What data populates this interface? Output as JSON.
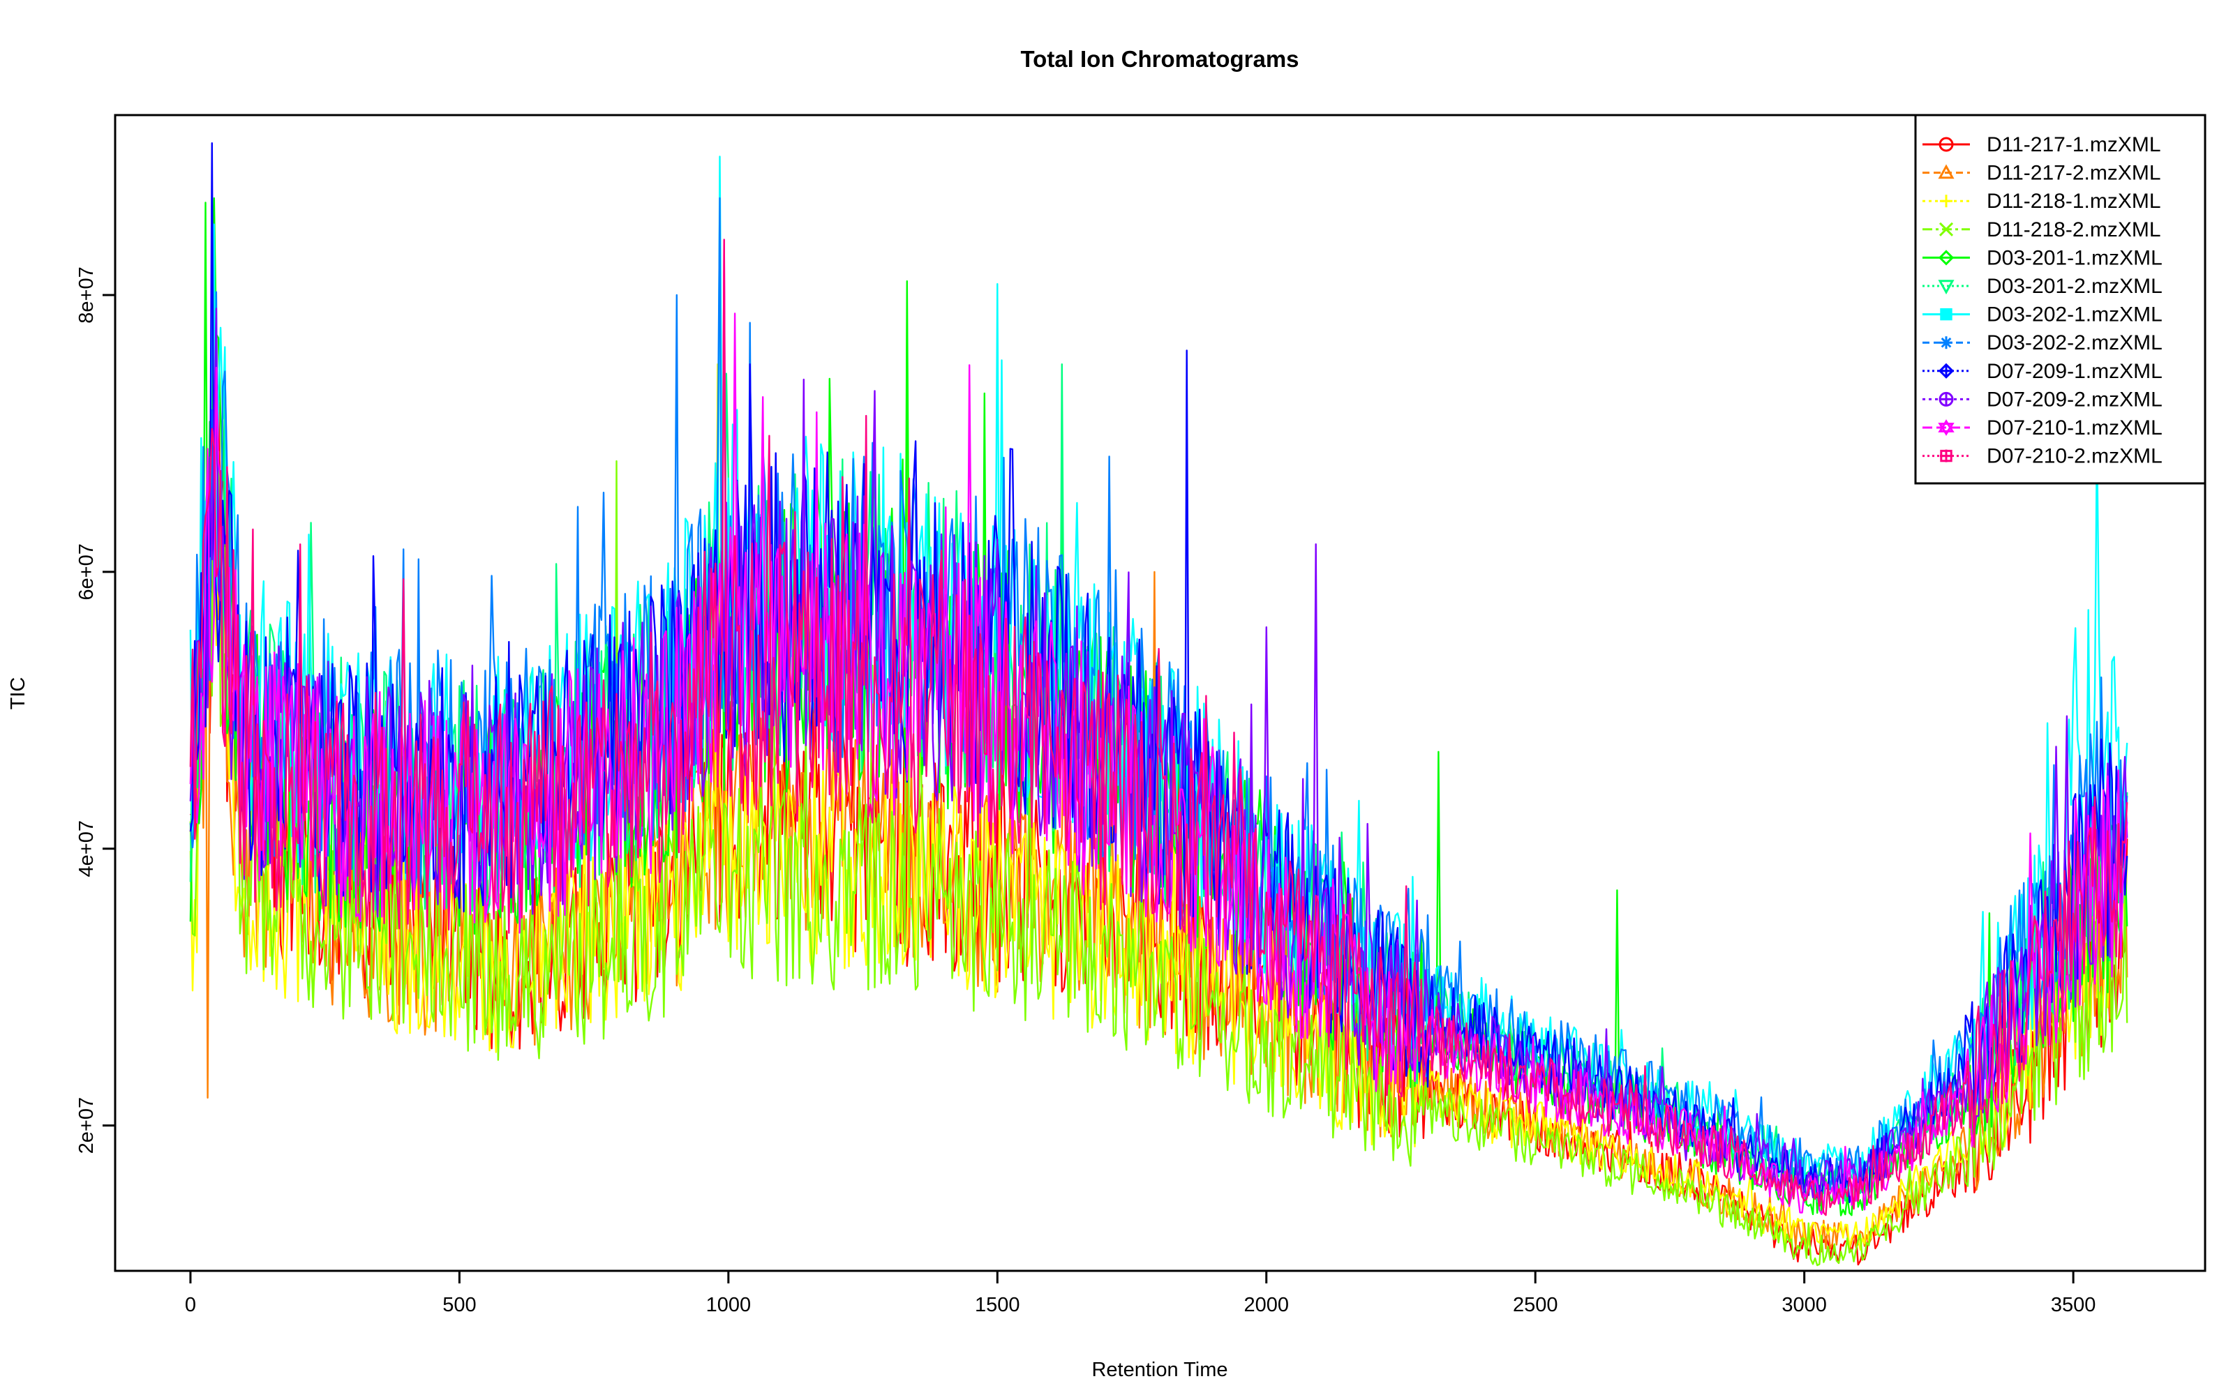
{
  "chart_data": {
    "type": "line",
    "title": "Total Ion Chromatograms",
    "xlabel": "Retention Time",
    "ylabel": "TIC",
    "xlim": [
      -140,
      3745
    ],
    "ylim": [
      9500000,
      93000000
    ],
    "x_ticks": [
      0,
      500,
      1000,
      1500,
      2000,
      2500,
      3000,
      3500
    ],
    "x_tick_labels": [
      "0",
      "500",
      "1000",
      "1500",
      "2000",
      "2500",
      "3000",
      "3500"
    ],
    "y_ticks": [
      20000000,
      40000000,
      60000000,
      80000000
    ],
    "y_tick_labels": [
      "2e+07",
      "4e+07",
      "6e+07",
      "8e+07"
    ],
    "legend_position": "top-right",
    "grid": false,
    "x_range_data": [
      0,
      3600
    ],
    "envelope_note_x": [
      0,
      45,
      100,
      300,
      600,
      900,
      1000,
      1250,
      1500,
      1800,
      2000,
      2200,
      2500,
      2800,
      3000,
      3100,
      3300,
      3450,
      3540,
      3600
    ],
    "series": [
      {
        "name": "D11-217-1.mzXML",
        "color": "#FF0000",
        "marker": "circle",
        "level": [
          38,
          63,
          42,
          36,
          31,
          37,
          43,
          40,
          38,
          34,
          29,
          24,
          20,
          16,
          11,
          11,
          17,
          25,
          31,
          36
        ],
        "spikes": [
          [
            45,
            70
          ],
          [
            980,
            62
          ]
        ]
      },
      {
        "name": "D11-217-2.mzXML",
        "color": "#FF8000",
        "marker": "triangle-up",
        "level": [
          36,
          60,
          40,
          35,
          31,
          37,
          42,
          40,
          37,
          33,
          28,
          24,
          20,
          16,
          12,
          12,
          18,
          26,
          32,
          36
        ],
        "spikes": [
          [
            30,
            22
          ],
          [
            1790,
            60
          ]
        ]
      },
      {
        "name": "D11-218-1.mzXML",
        "color": "#FFFF00",
        "marker": "plus",
        "level": [
          34,
          58,
          38,
          34,
          31,
          36,
          40,
          38,
          36,
          32,
          27,
          23,
          20,
          16,
          12,
          12,
          19,
          27,
          32,
          35
        ],
        "spikes": [
          [
            980,
            75
          ]
        ]
      },
      {
        "name": "D11-218-2.mzXML",
        "color": "#80FF00",
        "marker": "cross",
        "level": [
          35,
          62,
          38,
          34,
          30,
          35,
          38,
          37,
          35,
          31,
          26,
          22,
          19,
          15,
          11,
          11,
          18,
          26,
          30,
          33
        ],
        "spikes": [
          [
            790,
            68
          ],
          [
            1330,
            80
          ]
        ]
      },
      {
        "name": "D03-201-1.mzXML",
        "color": "#00FF00",
        "marker": "diamond",
        "level": [
          42,
          70,
          47,
          42,
          42,
          48,
          55,
          55,
          52,
          44,
          36,
          29,
          24,
          19,
          15,
          15,
          22,
          31,
          36,
          38
        ],
        "spikes": [
          [
            45,
            87
          ],
          [
            1330,
            81
          ],
          [
            2320,
            47
          ],
          [
            2650,
            37
          ]
        ]
      },
      {
        "name": "D03-201-2.mzXML",
        "color": "#00FF80",
        "marker": "triangle-down",
        "level": [
          44,
          72,
          48,
          44,
          44,
          50,
          57,
          57,
          54,
          45,
          37,
          30,
          25,
          20,
          16,
          16,
          23,
          32,
          38,
          40
        ],
        "spikes": [
          [
            1620,
            75
          ]
        ]
      },
      {
        "name": "D03-202-1.mzXML",
        "color": "#00FFFF",
        "marker": "square",
        "level": [
          48,
          73,
          50,
          46,
          45,
          52,
          60,
          58,
          55,
          46,
          38,
          31,
          26,
          21,
          17,
          17,
          25,
          35,
          50,
          42
        ],
        "spikes": [
          [
            985,
            90
          ],
          [
            3545,
            70
          ]
        ]
      },
      {
        "name": "D03-202-2.mzXML",
        "color": "#0080FF",
        "marker": "asterisk",
        "level": [
          46,
          70,
          49,
          46,
          45,
          51,
          59,
          58,
          55,
          46,
          38,
          31,
          26,
          21,
          17,
          17,
          25,
          34,
          45,
          42
        ],
        "spikes": [
          [
            905,
            80
          ],
          [
            985,
            87
          ],
          [
            1040,
            78
          ]
        ]
      },
      {
        "name": "D07-209-1.mzXML",
        "color": "#0000FF",
        "marker": "diamond-plus",
        "level": [
          44,
          68,
          48,
          45,
          44,
          50,
          58,
          57,
          54,
          45,
          37,
          30,
          25,
          20,
          16,
          16,
          24,
          33,
          40,
          40
        ],
        "spikes": [
          [
            1850,
            76
          ],
          [
            1040,
            75
          ]
        ]
      },
      {
        "name": "D07-209-2.mzXML",
        "color": "#8000FF",
        "marker": "circle-plus",
        "level": [
          45,
          68,
          47,
          44,
          43,
          49,
          56,
          55,
          52,
          44,
          36,
          29,
          24,
          19,
          16,
          16,
          23,
          32,
          38,
          40
        ],
        "spikes": [
          [
            2090,
            62
          ],
          [
            2000,
            56
          ]
        ]
      },
      {
        "name": "D07-210-1.mzXML",
        "color": "#FF00FF",
        "marker": "star-of-david",
        "level": [
          45,
          66,
          46,
          43,
          42,
          48,
          54,
          53,
          50,
          42,
          35,
          28,
          23,
          19,
          15,
          15,
          22,
          31,
          37,
          39
        ],
        "spikes": [
          [
            990,
            84
          ]
        ]
      },
      {
        "name": "D07-210-2.mzXML",
        "color": "#FF0080",
        "marker": "square-plus",
        "level": [
          45,
          66,
          45,
          43,
          42,
          47,
          53,
          52,
          49,
          42,
          35,
          28,
          23,
          19,
          15,
          15,
          22,
          31,
          37,
          38
        ],
        "spikes": [
          [
            45,
            69
          ],
          [
            990,
            84
          ]
        ]
      }
    ]
  }
}
